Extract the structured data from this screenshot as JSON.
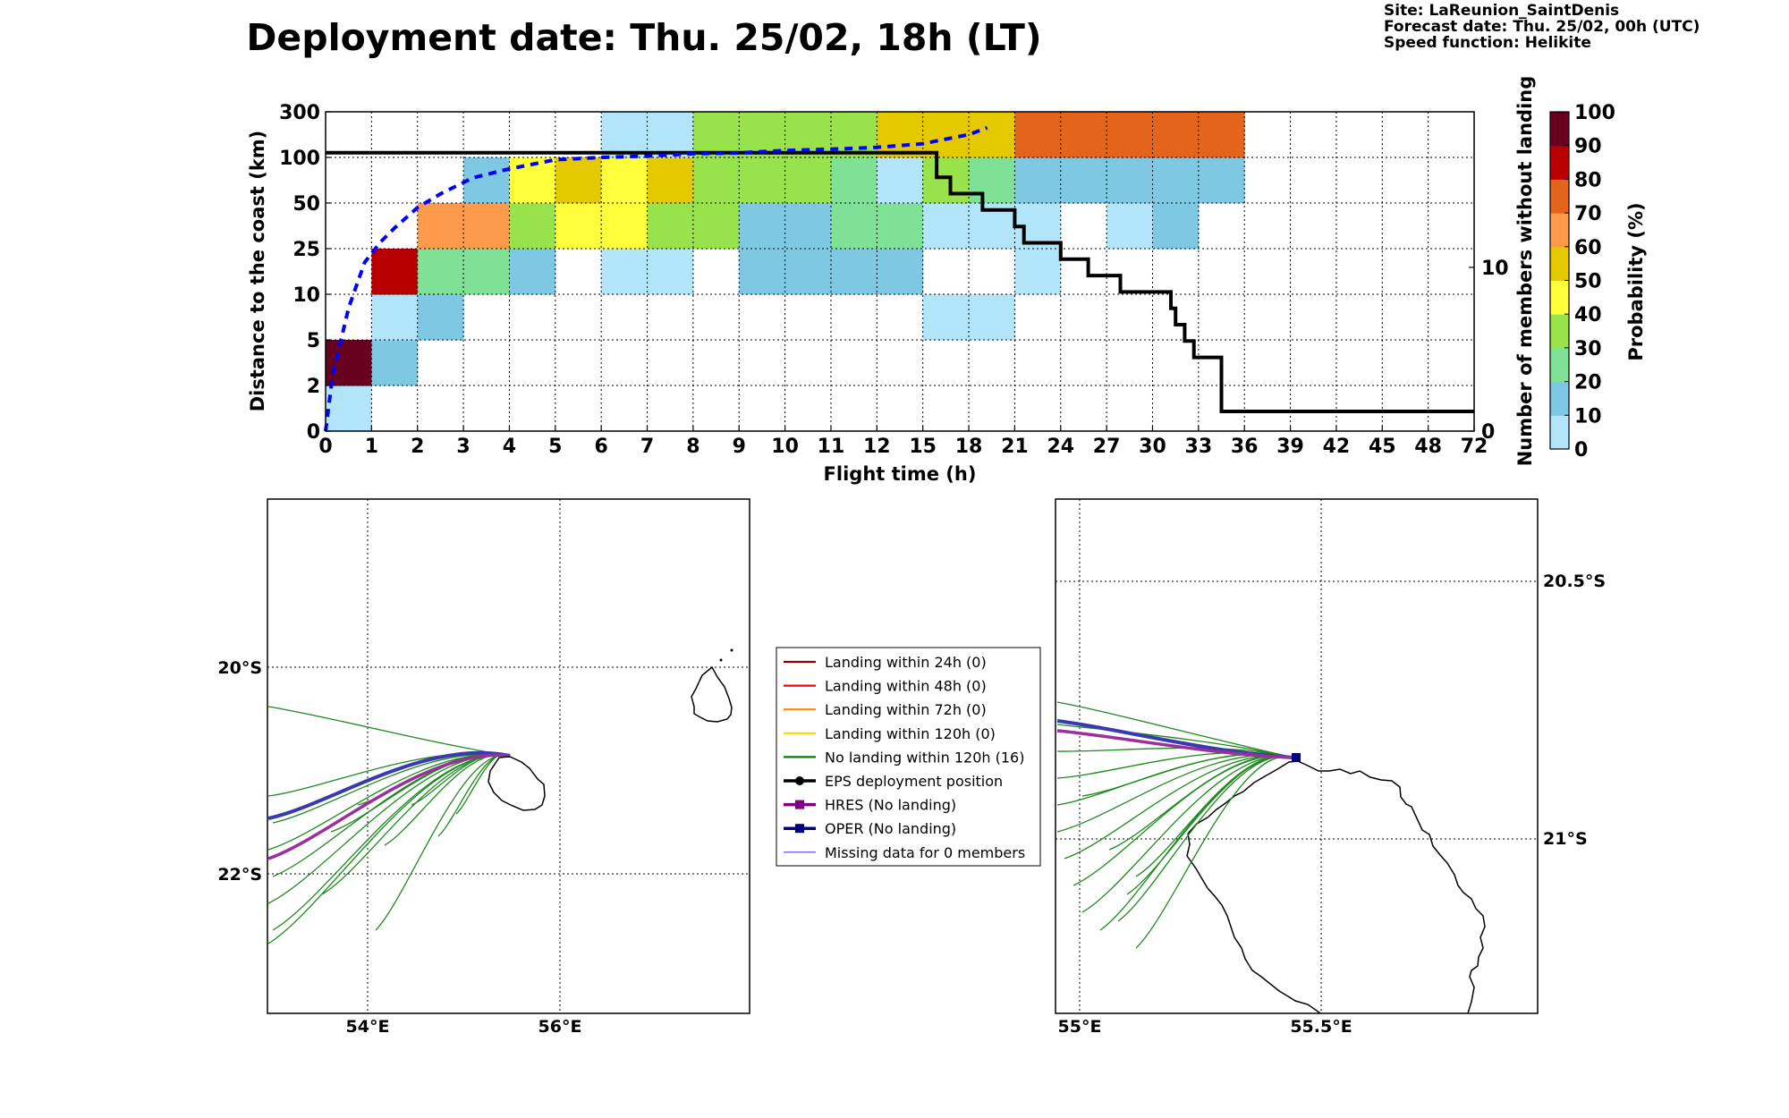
{
  "header": {
    "title": "Deployment date: Thu. 25/02, 18h (LT)",
    "site": "Site: LaReunion_SaintDenis",
    "forecast": "Forecast date: Thu. 25/02, 00h (UTC)",
    "speed": "Speed function: Helikite"
  },
  "chart_data": [
    {
      "type": "heatmap",
      "xlabel": "Flight time (h)",
      "ylabel": "Distance to the coast (km)",
      "y2label": "Number of members without landing",
      "x_ticks": [
        "0",
        "1",
        "2",
        "3",
        "4",
        "5",
        "6",
        "7",
        "8",
        "9",
        "10",
        "11",
        "12",
        "15",
        "18",
        "21",
        "24",
        "27",
        "30",
        "33",
        "36",
        "39",
        "42",
        "45",
        "48",
        "72"
      ],
      "y_ticks": [
        "0",
        "2",
        "5",
        "10",
        "25",
        "50",
        "100",
        "300"
      ],
      "y2_ticks": [
        {
          "label": "0",
          "value": 0
        },
        {
          "label": "10",
          "value": 10
        }
      ],
      "y2lim": [
        0,
        19.5
      ],
      "colorbar": {
        "label": "Probability (%)",
        "ticks": [
          "0",
          "10",
          "20",
          "30",
          "40",
          "50",
          "60",
          "70",
          "80",
          "90",
          "100"
        ],
        "colors": [
          "#b3e5fa",
          "#7ec8e3",
          "#7fe195",
          "#98e34b",
          "#ffff3b",
          "#e4c800",
          "#fd9a4c",
          "#e4641c",
          "#b80000",
          "#680020"
        ]
      },
      "cells": [
        {
          "x": 0,
          "y": 0,
          "p": 5
        },
        {
          "x": 0,
          "y": 1,
          "p": 95
        },
        {
          "x": 1,
          "y": 1,
          "p": 15
        },
        {
          "x": 1,
          "y": 2,
          "p": 5
        },
        {
          "x": 1,
          "y": 3,
          "p": 85
        },
        {
          "x": 2,
          "y": 2,
          "p": 15
        },
        {
          "x": 2,
          "y": 3,
          "p": 25
        },
        {
          "x": 2,
          "y": 4,
          "p": 65
        },
        {
          "x": 3,
          "y": 3,
          "p": 25
        },
        {
          "x": 3,
          "y": 4,
          "p": 65
        },
        {
          "x": 3,
          "y": 5,
          "p": 15
        },
        {
          "x": 4,
          "y": 3,
          "p": 15
        },
        {
          "x": 4,
          "y": 4,
          "p": 35
        },
        {
          "x": 4,
          "y": 5,
          "p": 45
        },
        {
          "x": 5,
          "y": 4,
          "p": 45
        },
        {
          "x": 5,
          "y": 5,
          "p": 55
        },
        {
          "x": 6,
          "y": 3,
          "p": 5
        },
        {
          "x": 6,
          "y": 4,
          "p": 45
        },
        {
          "x": 6,
          "y": 5,
          "p": 45
        },
        {
          "x": 6,
          "y": 6,
          "p": 5
        },
        {
          "x": 7,
          "y": 3,
          "p": 5
        },
        {
          "x": 7,
          "y": 4,
          "p": 35
        },
        {
          "x": 7,
          "y": 5,
          "p": 55
        },
        {
          "x": 7,
          "y": 6,
          "p": 5
        },
        {
          "x": 8,
          "y": 4,
          "p": 35
        },
        {
          "x": 8,
          "y": 5,
          "p": 35
        },
        {
          "x": 8,
          "y": 6,
          "p": 35
        },
        {
          "x": 9,
          "y": 3,
          "p": 15
        },
        {
          "x": 9,
          "y": 4,
          "p": 15
        },
        {
          "x": 9,
          "y": 5,
          "p": 35
        },
        {
          "x": 9,
          "y": 6,
          "p": 35
        },
        {
          "x": 10,
          "y": 3,
          "p": 15
        },
        {
          "x": 10,
          "y": 4,
          "p": 15
        },
        {
          "x": 10,
          "y": 5,
          "p": 35
        },
        {
          "x": 10,
          "y": 6,
          "p": 35
        },
        {
          "x": 11,
          "y": 3,
          "p": 15
        },
        {
          "x": 11,
          "y": 4,
          "p": 25
        },
        {
          "x": 11,
          "y": 5,
          "p": 25
        },
        {
          "x": 11,
          "y": 6,
          "p": 35
        },
        {
          "x": 12,
          "y": 3,
          "p": 15
        },
        {
          "x": 12,
          "y": 4,
          "p": 25
        },
        {
          "x": 12,
          "y": 5,
          "p": 5
        },
        {
          "x": 12,
          "y": 6,
          "p": 55
        },
        {
          "x": 13,
          "y": 2,
          "p": 5
        },
        {
          "x": 13,
          "y": 4,
          "p": 5
        },
        {
          "x": 13,
          "y": 5,
          "p": 35
        },
        {
          "x": 13,
          "y": 6,
          "p": 55
        },
        {
          "x": 14,
          "y": 2,
          "p": 5
        },
        {
          "x": 14,
          "y": 4,
          "p": 5
        },
        {
          "x": 14,
          "y": 5,
          "p": 25
        },
        {
          "x": 14,
          "y": 6,
          "p": 55
        },
        {
          "x": 15,
          "y": 3,
          "p": 5
        },
        {
          "x": 15,
          "y": 4,
          "p": 5
        },
        {
          "x": 15,
          "y": 5,
          "p": 15
        },
        {
          "x": 15,
          "y": 6,
          "p": 75
        },
        {
          "x": 16,
          "y": 5,
          "p": 15
        },
        {
          "x": 16,
          "y": 6,
          "p": 75
        },
        {
          "x": 17,
          "y": 4,
          "p": 5
        },
        {
          "x": 17,
          "y": 5,
          "p": 15
        },
        {
          "x": 17,
          "y": 6,
          "p": 75
        },
        {
          "x": 18,
          "y": 4,
          "p": 15
        },
        {
          "x": 18,
          "y": 5,
          "p": 15
        },
        {
          "x": 18,
          "y": 6,
          "p": 75
        },
        {
          "x": 19,
          "y": 5,
          "p": 15
        },
        {
          "x": 19,
          "y": 6,
          "p": 75
        }
      ],
      "series": [
        {
          "kind": "step-count",
          "color": "#000000",
          "axis": "right",
          "points": [
            [
              0,
              17
            ],
            [
              13.3,
              17
            ],
            [
              13.3,
              15.5
            ],
            [
              13.6,
              15.5
            ],
            [
              13.6,
              14.5
            ],
            [
              14.3,
              14.5
            ],
            [
              14.3,
              13.5
            ],
            [
              15.0,
              13.5
            ],
            [
              15.0,
              12.5
            ],
            [
              15.2,
              12.5
            ],
            [
              15.2,
              11.5
            ],
            [
              16.0,
              11.5
            ],
            [
              16.0,
              10.5
            ],
            [
              16.6,
              10.5
            ],
            [
              16.6,
              9.5
            ],
            [
              17.3,
              9.5
            ],
            [
              17.3,
              8.5
            ],
            [
              18.4,
              8.5
            ],
            [
              18.4,
              7.5
            ],
            [
              18.5,
              7.5
            ],
            [
              18.5,
              6.5
            ],
            [
              18.7,
              6.5
            ],
            [
              18.7,
              5.5
            ],
            [
              18.9,
              5.5
            ],
            [
              18.9,
              4.5
            ],
            [
              19.5,
              4.5
            ],
            [
              19.5,
              1.2
            ],
            [
              25,
              1.2
            ]
          ]
        },
        {
          "kind": "median-distance",
          "color": "#0000ff",
          "style": "dashed",
          "axis": "left",
          "points": [
            [
              0,
              0
            ],
            [
              0.15,
              1.2
            ],
            [
              0.5,
              2.7
            ],
            [
              0.85,
              3.7
            ],
            [
              1.2,
              4.15
            ],
            [
              1.5,
              4.45
            ],
            [
              2.0,
              4.9
            ],
            [
              2.5,
              5.2
            ],
            [
              3.2,
              5.55
            ],
            [
              4.0,
              5.75
            ],
            [
              5.0,
              5.95
            ],
            [
              6.0,
              6.0
            ],
            [
              7.0,
              6.03
            ],
            [
              8.0,
              6.08
            ],
            [
              9.0,
              6.1
            ],
            [
              10.0,
              6.15
            ],
            [
              11.0,
              6.18
            ],
            [
              12.0,
              6.22
            ],
            [
              13.0,
              6.3
            ],
            [
              14.0,
              6.5
            ],
            [
              14.4,
              6.65
            ]
          ]
        }
      ]
    },
    {
      "type": "map",
      "panel": "regional",
      "x_ticks": [
        "54°E",
        "56°E"
      ],
      "y_ticks": [
        "20°S",
        "22°S"
      ],
      "series": [
        {
          "name": "HRES",
          "color": "#9b2f9b"
        },
        {
          "name": "OPER",
          "color": "#3a3ab0"
        },
        {
          "name": "EPS members",
          "color": "#1e8a1e"
        }
      ]
    },
    {
      "type": "map",
      "panel": "zoom",
      "x_ticks": [
        "55°E",
        "55.5°E"
      ],
      "y_ticks": [
        "20.5°S",
        "21°S"
      ],
      "series": [
        {
          "name": "HRES",
          "color": "#9b2f9b"
        },
        {
          "name": "OPER",
          "color": "#3a3ab0"
        },
        {
          "name": "EPS members",
          "color": "#1e8a1e"
        }
      ]
    }
  ],
  "legend": {
    "items": [
      {
        "label": "Landing within 24h (0)",
        "color": "#8b0000",
        "marker": "none"
      },
      {
        "label": "Landing within 48h (0)",
        "color": "#ff0000",
        "marker": "none"
      },
      {
        "label": "Landing within 72h (0)",
        "color": "#ff8c00",
        "marker": "none"
      },
      {
        "label": "Landing within 120h (0)",
        "color": "#ffd700",
        "marker": "none"
      },
      {
        "label": "No landing within 120h (16)",
        "color": "#008000",
        "marker": "none"
      },
      {
        "label": "EPS deployment position",
        "color": "#000000",
        "marker": "circle"
      },
      {
        "label": "HRES (No landing)",
        "color": "#800080",
        "marker": "square"
      },
      {
        "label": "OPER (No landing)",
        "color": "#000080",
        "marker": "square"
      },
      {
        "label": "Missing data for 0 members",
        "color": "#4040ff",
        "marker": "thin"
      }
    ]
  }
}
